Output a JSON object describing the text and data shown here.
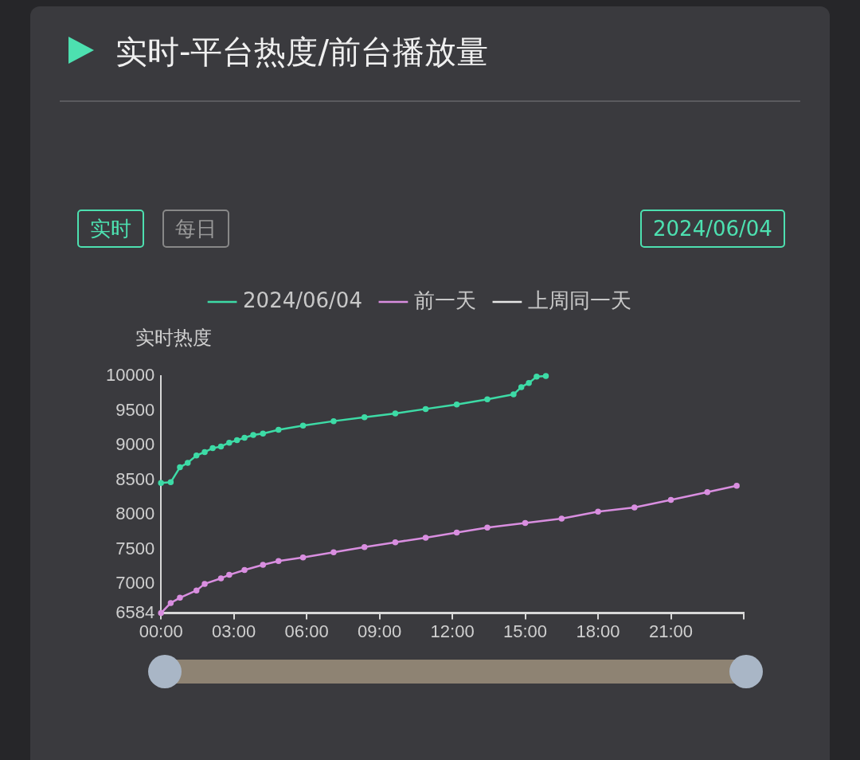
{
  "chart_data": {
    "type": "line",
    "title": "实时-平台热度/前台播放量",
    "ylabel": "实时热度",
    "annotations": [
      "实时",
      "每日",
      "2024/06/04"
    ],
    "xlim": [
      0,
      24
    ],
    "xticks": [
      {
        "value": 0,
        "label": "00:00"
      },
      {
        "value": 3,
        "label": "03:00"
      },
      {
        "value": 6,
        "label": "06:00"
      },
      {
        "value": 9,
        "label": "09:00"
      },
      {
        "value": 12,
        "label": "12:00"
      },
      {
        "value": 15,
        "label": "15:00"
      },
      {
        "value": 18,
        "label": "18:00"
      },
      {
        "value": 21,
        "label": "21:00"
      },
      {
        "value": 24,
        "label": null
      }
    ],
    "ylim": [
      6584,
      10000
    ],
    "yticks": [
      6584,
      7000,
      7500,
      8000,
      8500,
      9000,
      9500,
      10000
    ],
    "grid": false,
    "legend": "top",
    "marker": "circle",
    "line_style": "solid",
    "series": [
      {
        "name": "2024/06/04",
        "color": "#3ddba6",
        "x": [
          0,
          0.4,
          0.78,
          1.1,
          1.46,
          1.8,
          2.13,
          2.47,
          2.81,
          3.13,
          3.44,
          3.8,
          4.2,
          4.84,
          5.85,
          7.11,
          8.38,
          9.65,
          10.9,
          12.18,
          13.44,
          14.52,
          14.84,
          15.15,
          15.47,
          15.85
        ],
        "values": [
          8460,
          8470,
          8685,
          8750,
          8855,
          8905,
          8960,
          8985,
          9040,
          9075,
          9110,
          9150,
          9170,
          9225,
          9285,
          9350,
          9405,
          9460,
          9525,
          9590,
          9665,
          9735,
          9840,
          9900,
          9990,
          10000
        ]
      },
      {
        "name": "前一天",
        "color": "#d98ee0",
        "x": [
          0,
          0.4,
          0.78,
          1.46,
          1.8,
          2.47,
          2.81,
          3.44,
          4.2,
          4.84,
          5.85,
          7.11,
          8.38,
          9.65,
          10.9,
          12.18,
          13.44,
          15,
          16.5,
          18,
          19.5,
          21,
          22.5,
          23.71
        ],
        "values": [
          6584,
          6730,
          6805,
          6910,
          7005,
          7085,
          7135,
          7205,
          7280,
          7335,
          7385,
          7460,
          7535,
          7605,
          7670,
          7745,
          7815,
          7882,
          7946,
          8046,
          8105,
          8214,
          8328,
          8418
        ]
      },
      {
        "name": "上周同一天",
        "color": "#e6e6e6"
      }
    ]
  }
}
